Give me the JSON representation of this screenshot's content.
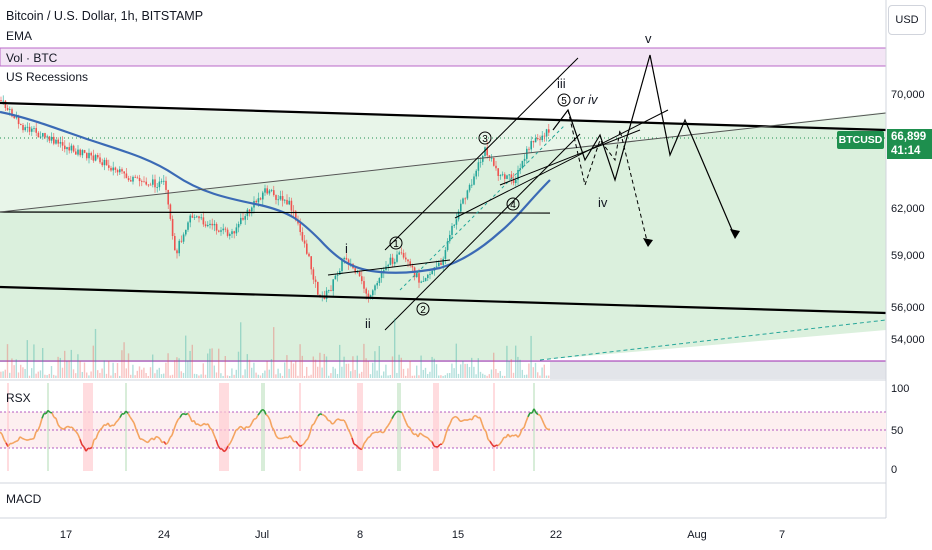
{
  "legend": {
    "title": "Bitcoin / U.S. Dollar, 1h, BITSTAMP",
    "ema": "EMA",
    "vol": "Vol · BTC",
    "recessions": "US Recessions"
  },
  "currency_button": "USD",
  "price_axis": {
    "labels": [
      "70,000",
      "62,000",
      "59,000",
      "56,000",
      "54,000"
    ],
    "current_price": "66,899",
    "countdown": "41:14",
    "symbol": "BTCUSD"
  },
  "rsx": {
    "label": "RSX",
    "axis_labels": [
      "100",
      "50",
      "0"
    ]
  },
  "macd": {
    "label": "MACD"
  },
  "time_axis": {
    "labels": [
      "17",
      "24",
      "Jul",
      "8",
      "15",
      "22",
      "Aug",
      "7"
    ]
  },
  "annotations": {
    "wave_v": "v",
    "wave_iii": "iii",
    "wave_5_or_iv": "or iv",
    "wave_iv": "iv",
    "wave_i": "i",
    "wave_ii": "ii",
    "circle_1": "1",
    "circle_2": "2",
    "circle_3": "3",
    "circle_4": "4",
    "circle_5": "5"
  },
  "colors": {
    "up": "#26a69a",
    "down": "#ef5350",
    "ema": "#2962ff",
    "ema_line": "#3b6ab5",
    "channel_fill": "#c8e6c9",
    "recession_line": "#9c27b0",
    "price_tag": "#1e8f4e",
    "rsx_green": "#2e9e3e",
    "rsx_orange": "#f4a460",
    "rsx_red": "#e53935"
  }
}
